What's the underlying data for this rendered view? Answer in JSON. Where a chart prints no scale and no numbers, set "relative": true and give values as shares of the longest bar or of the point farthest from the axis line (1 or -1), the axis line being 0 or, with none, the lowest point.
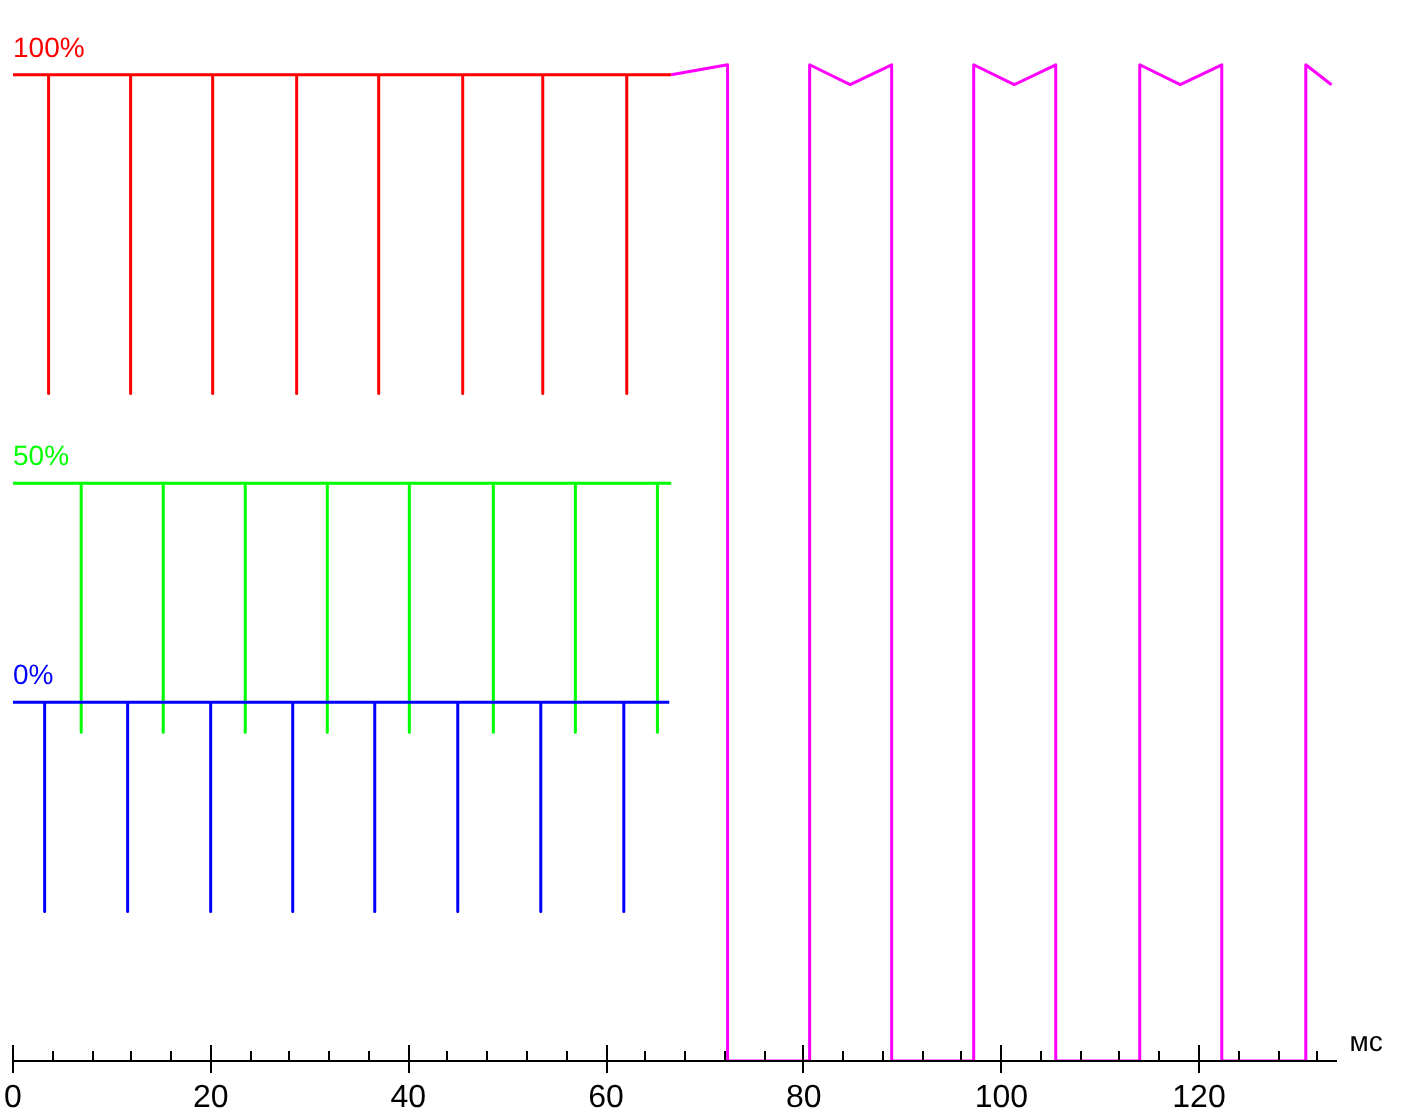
{
  "chart_data": {
    "type": "line",
    "relative": true,
    "xlabel": "мс",
    "xlim": [
      0,
      134
    ],
    "xticks": [
      0,
      {
        "value": 4,
        "label": null
      },
      {
        "value": 8,
        "label": null
      },
      {
        "value": 12,
        "label": null
      },
      {
        "value": 16,
        "label": null
      },
      20,
      {
        "value": 24,
        "label": null
      },
      {
        "value": 28,
        "label": null
      },
      {
        "value": 32,
        "label": null
      },
      {
        "value": 36,
        "label": null
      },
      40,
      {
        "value": 44,
        "label": null
      },
      {
        "value": 48,
        "label": null
      },
      {
        "value": 52,
        "label": null
      },
      {
        "value": 56,
        "label": null
      },
      60,
      {
        "value": 64,
        "label": null
      },
      {
        "value": 68,
        "label": null
      },
      {
        "value": 72,
        "label": null
      },
      {
        "value": 76,
        "label": null
      },
      80,
      {
        "value": 84,
        "label": null
      },
      {
        "value": 88,
        "label": null
      },
      {
        "value": 92,
        "label": null
      },
      {
        "value": 96,
        "label": null
      },
      100,
      {
        "value": 104,
        "label": null
      },
      {
        "value": 108,
        "label": null
      },
      {
        "value": 112,
        "label": null
      },
      {
        "value": 116,
        "label": null
      },
      120,
      {
        "value": 124,
        "label": null
      },
      {
        "value": 128,
        "label": null
      },
      {
        "value": 132,
        "label": null
      }
    ],
    "grid": false,
    "marker": "none",
    "line_style": "solid",
    "series": [
      {
        "name": "100%",
        "color": "#ff0000",
        "x": [
          0,
          3.6,
          3.6,
          3.6,
          11.9,
          11.9,
          11.9,
          20.2,
          20.2,
          20.2,
          28.7,
          28.7,
          28.7,
          37.0,
          37.0,
          37.0,
          45.5,
          45.5,
          45.5,
          53.6,
          53.6,
          53.6,
          62.1,
          62.1,
          62.1,
          66.6
        ],
        "values": [
          0.99,
          0.99,
          0.67,
          0.99,
          0.99,
          0.67,
          0.99,
          0.99,
          0.67,
          0.99,
          0.99,
          0.67,
          0.99,
          0.99,
          0.67,
          0.99,
          0.99,
          0.67,
          0.99,
          0.99,
          0.67,
          0.99,
          0.99,
          0.67,
          0.99,
          0.99
        ]
      },
      {
        "name": "50%",
        "color": "#00ff00",
        "x": [
          0,
          6.9,
          6.9,
          6.9,
          15.2,
          15.2,
          15.2,
          23.5,
          23.5,
          23.5,
          31.8,
          31.8,
          31.8,
          40.1,
          40.1,
          40.1,
          48.6,
          48.6,
          48.6,
          56.9,
          56.9,
          56.9,
          65.2,
          65.2,
          65.2,
          66.6
        ],
        "values": [
          0.58,
          0.58,
          0.33,
          0.58,
          0.58,
          0.33,
          0.58,
          0.58,
          0.33,
          0.58,
          0.58,
          0.33,
          0.58,
          0.58,
          0.33,
          0.58,
          0.58,
          0.33,
          0.58,
          0.58,
          0.33,
          0.58,
          0.58,
          0.33,
          0.58,
          0.58
        ]
      },
      {
        "name": "0%",
        "color": "#0000ff",
        "x": [
          0,
          3.2,
          3.2,
          3.2,
          11.6,
          11.6,
          11.6,
          20.0,
          20.0,
          20.0,
          28.3,
          28.3,
          28.3,
          36.6,
          36.6,
          36.6,
          45.0,
          45.0,
          45.0,
          53.4,
          53.4,
          53.4,
          61.8,
          61.8,
          61.8,
          66.4
        ],
        "values": [
          0.36,
          0.36,
          0.15,
          0.36,
          0.36,
          0.15,
          0.36,
          0.36,
          0.15,
          0.36,
          0.36,
          0.15,
          0.36,
          0.36,
          0.15,
          0.36,
          0.36,
          0.15,
          0.36,
          0.36,
          0.15,
          0.36,
          0.36,
          0.15,
          0.36,
          0.36
        ]
      },
      {
        "color": "#ff00ff",
        "x": [
          66.6,
          72.3,
          72.3,
          80.6,
          80.6,
          84.7,
          88.9,
          88.9,
          97.2,
          97.2,
          101.3,
          105.5,
          105.5,
          114.0,
          114.0,
          118.1,
          122.3,
          122.3,
          130.8,
          130.8,
          133.4
        ],
        "values": [
          0.99,
          1,
          0,
          0,
          1,
          0.98,
          1,
          0,
          0,
          1,
          0.98,
          1,
          0,
          0,
          1,
          0.98,
          1,
          0,
          0,
          1,
          0.98
        ]
      }
    ]
  }
}
